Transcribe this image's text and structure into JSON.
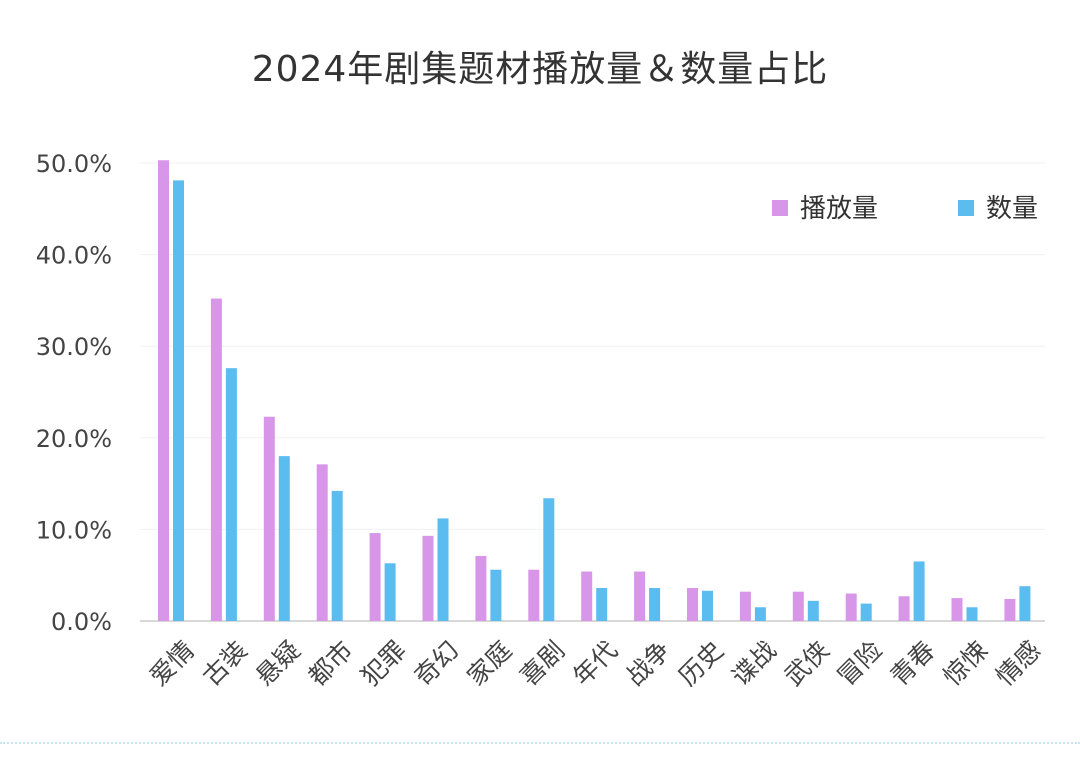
{
  "chart_data": {
    "type": "bar",
    "title": "2024年剧集题材播放量＆数量占比",
    "categories": [
      "爱情",
      "古装",
      "悬疑",
      "都市",
      "犯罪",
      "奇幻",
      "家庭",
      "喜剧",
      "年代",
      "战争",
      "历史",
      "谍战",
      "武侠",
      "冒险",
      "青春",
      "惊悚",
      "情感"
    ],
    "series": [
      {
        "name": "播放量",
        "color": "#d896e8",
        "values": [
          50.3,
          35.2,
          22.3,
          17.1,
          9.6,
          9.3,
          7.1,
          5.6,
          5.4,
          5.4,
          3.6,
          3.2,
          3.2,
          3.0,
          2.7,
          2.5,
          2.4
        ]
      },
      {
        "name": "数量",
        "color": "#5bbcf0",
        "values": [
          48.1,
          27.6,
          18.0,
          14.2,
          6.3,
          11.2,
          5.6,
          13.4,
          3.6,
          3.6,
          3.3,
          1.5,
          2.2,
          1.9,
          6.5,
          1.5,
          3.8
        ]
      }
    ],
    "yticks": [
      "0.0%",
      "10.0%",
      "20.0%",
      "30.0%",
      "40.0%",
      "50.0%"
    ],
    "ylim": [
      0,
      50
    ],
    "grid": true,
    "legend_position": "top-right"
  }
}
